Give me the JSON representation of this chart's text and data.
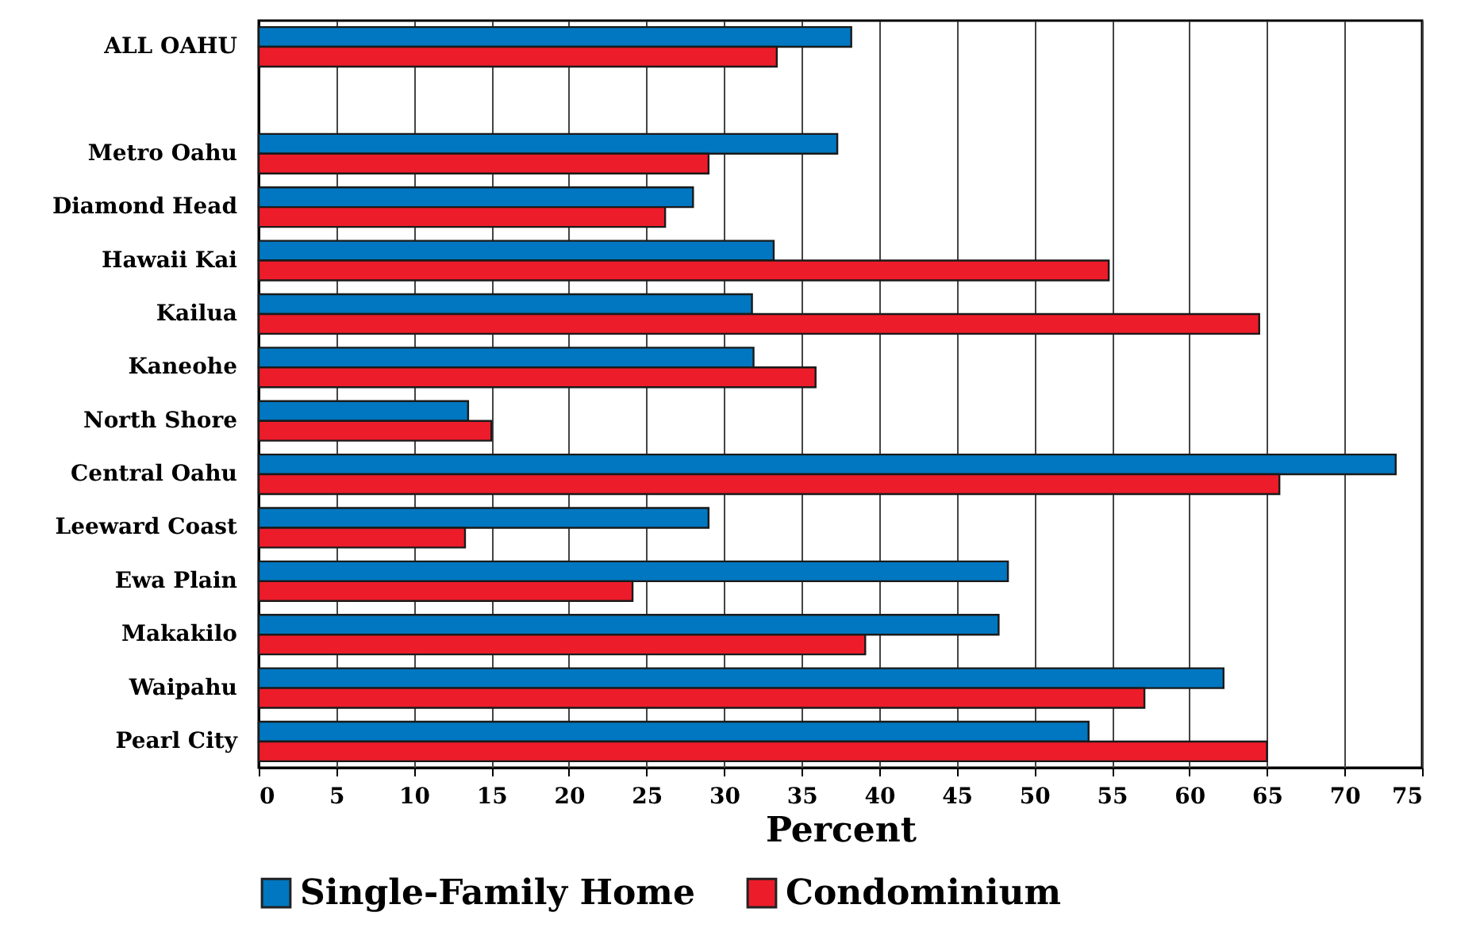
{
  "chart_data": {
    "type": "bar",
    "orientation": "horizontal",
    "xlabel": "Percent",
    "categories": [
      "ALL OAHU",
      null,
      "Metro Oahu",
      "Diamond Head",
      "Hawaii Kai",
      "Kailua",
      "Kaneohe",
      "North Shore",
      "Central Oahu",
      "Leeward Coast",
      "Ewa Plain",
      "Makakilo",
      "Waipahu",
      "Pearl City"
    ],
    "series": [
      {
        "name": "Single-Family Home",
        "color": "#0077c0",
        "values": [
          38.2,
          null,
          37.3,
          28.0,
          33.2,
          31.8,
          31.9,
          13.5,
          73.3,
          29.0,
          48.3,
          47.7,
          62.2,
          53.5
        ]
      },
      {
        "name": "Condominium",
        "color": "#ed1c2a",
        "values": [
          33.4,
          null,
          29.0,
          26.2,
          54.8,
          64.5,
          35.9,
          15.0,
          65.8,
          13.3,
          24.1,
          39.1,
          57.1,
          65.0
        ]
      }
    ],
    "xlim": [
      0,
      75
    ],
    "xticks": [
      0,
      5,
      10,
      15,
      20,
      25,
      30,
      35,
      40,
      45,
      50,
      55,
      60,
      65,
      70,
      75
    ],
    "grid": "x",
    "legend": "bottom"
  }
}
